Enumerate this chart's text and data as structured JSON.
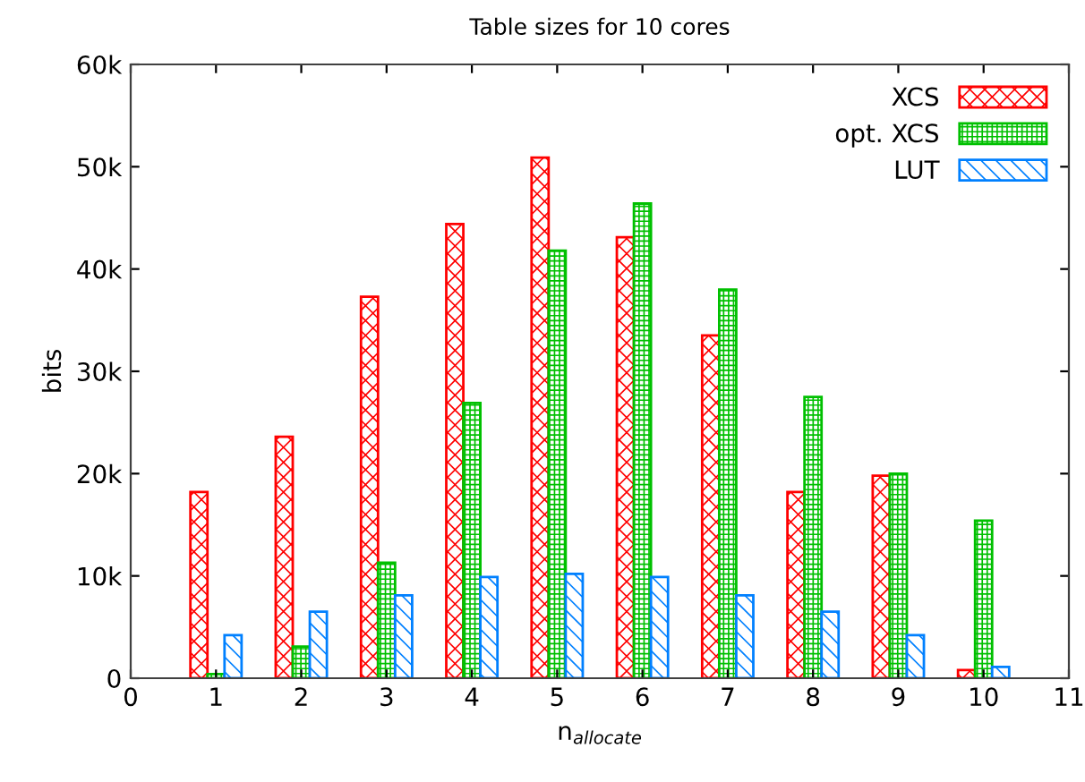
{
  "chart_data": {
    "type": "bar",
    "title": "Table sizes for 10 cores",
    "xlabel": "n$_{allocate}$",
    "ylabel": "bits",
    "x": [
      1,
      2,
      3,
      4,
      5,
      6,
      7,
      8,
      9,
      10
    ],
    "series": [
      {
        "name": "XCS",
        "color": "#ff0000",
        "values": [
          18.2,
          23.6,
          37.3,
          44.4,
          50.9,
          43.1,
          33.5,
          18.2,
          19.8,
          0.8
        ]
      },
      {
        "name": "opt. XCS",
        "color": "#00c000",
        "values": [
          0.4,
          3.1,
          11.3,
          26.9,
          41.8,
          46.4,
          38.0,
          27.5,
          20.0,
          15.4
        ]
      },
      {
        "name": "LUT",
        "color": "#0080ff",
        "values": [
          4.2,
          6.5,
          8.1,
          9.9,
          10.2,
          9.9,
          8.1,
          6.5,
          4.2,
          1.1
        ]
      }
    ],
    "xlim": [
      0,
      11
    ],
    "xticks": [
      0,
      1,
      2,
      3,
      4,
      5,
      6,
      7,
      8,
      9,
      10,
      11
    ],
    "ylim": [
      0,
      60
    ],
    "yticks": [
      {
        "value": 0,
        "label": "0"
      },
      {
        "value": 10,
        "label": "10k"
      },
      {
        "value": 20,
        "label": "20k"
      },
      {
        "value": 30,
        "label": "30k"
      },
      {
        "value": 40,
        "label": "40k"
      },
      {
        "value": 50,
        "label": "50k"
      },
      {
        "value": 60,
        "label": "60k"
      }
    ],
    "legend": "top right",
    "grid": false
  }
}
